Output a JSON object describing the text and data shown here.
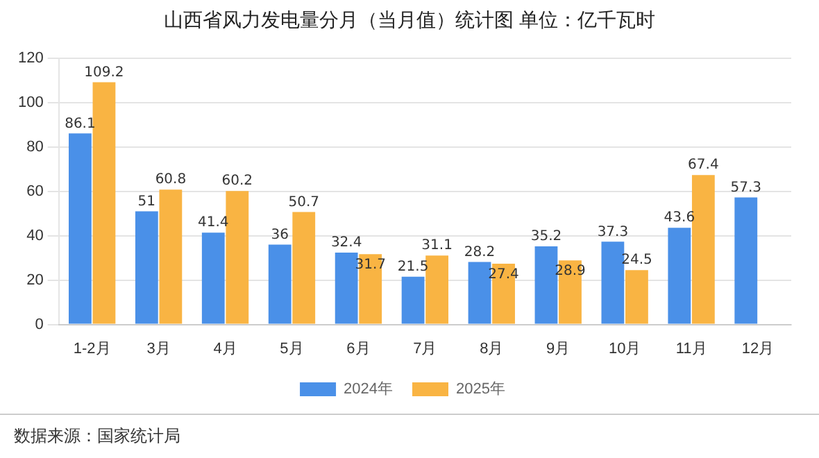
{
  "chart_data": {
    "type": "bar",
    "title": "山西省风力发电量分月（当月值）统计图 单位：亿千瓦时",
    "categories": [
      "1-2月",
      "3月",
      "4月",
      "5月",
      "6月",
      "7月",
      "8月",
      "9月",
      "10月",
      "11月",
      "12月"
    ],
    "series": [
      {
        "name": "2024年",
        "color": "#4a90e8",
        "values": [
          86.1,
          51,
          41.4,
          36,
          32.4,
          21.5,
          28.2,
          35.2,
          37.3,
          43.6,
          57.3
        ]
      },
      {
        "name": "2025年",
        "color": "#f9b443",
        "values": [
          109.2,
          60.8,
          60.2,
          50.7,
          31.7,
          31.1,
          27.4,
          28.9,
          24.5,
          67.4,
          null
        ]
      }
    ],
    "ylim": [
      0,
      120
    ],
    "yticks": [
      0,
      20,
      40,
      60,
      80,
      100,
      120
    ],
    "grid": "y",
    "legend": "bottom",
    "data_labels": true,
    "annotations": [
      "数据来源：国家统计局"
    ]
  }
}
